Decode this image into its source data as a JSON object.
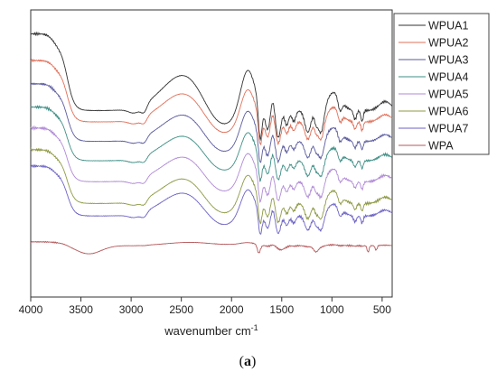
{
  "chart_data": {
    "type": "line",
    "title": "",
    "xlabel": "wavenumber cm",
    "xlabel_superscript": "-1",
    "ylabel": "",
    "xlim": [
      4000,
      400
    ],
    "x_reversed": true,
    "x_ticks": [
      "4000",
      "3500",
      "3000",
      "2500",
      "2000",
      "1500",
      "1000",
      "500"
    ],
    "y_ticks_shown": false,
    "grid": false,
    "legend_position": "top-right",
    "caption_prefix": "(",
    "caption_letter": "a",
    "caption_suffix": ")",
    "series": [
      {
        "name": "WPUA1",
        "color": "#333333",
        "offset": 0
      },
      {
        "name": "WPUA2",
        "color": "#e0705a",
        "offset": 1
      },
      {
        "name": "WPUA3",
        "color": "#5a5a9e",
        "offset": 2
      },
      {
        "name": "WPUA4",
        "color": "#3f8f86",
        "offset": 3
      },
      {
        "name": "WPUA5",
        "color": "#b08ad6",
        "offset": 4
      },
      {
        "name": "WPUA6",
        "color": "#8f9a45",
        "offset": 5
      },
      {
        "name": "WPUA7",
        "color": "#6b62c4",
        "offset": 6
      },
      {
        "name": "WPA",
        "color": "#b5585b",
        "offset": 7
      }
    ]
  }
}
